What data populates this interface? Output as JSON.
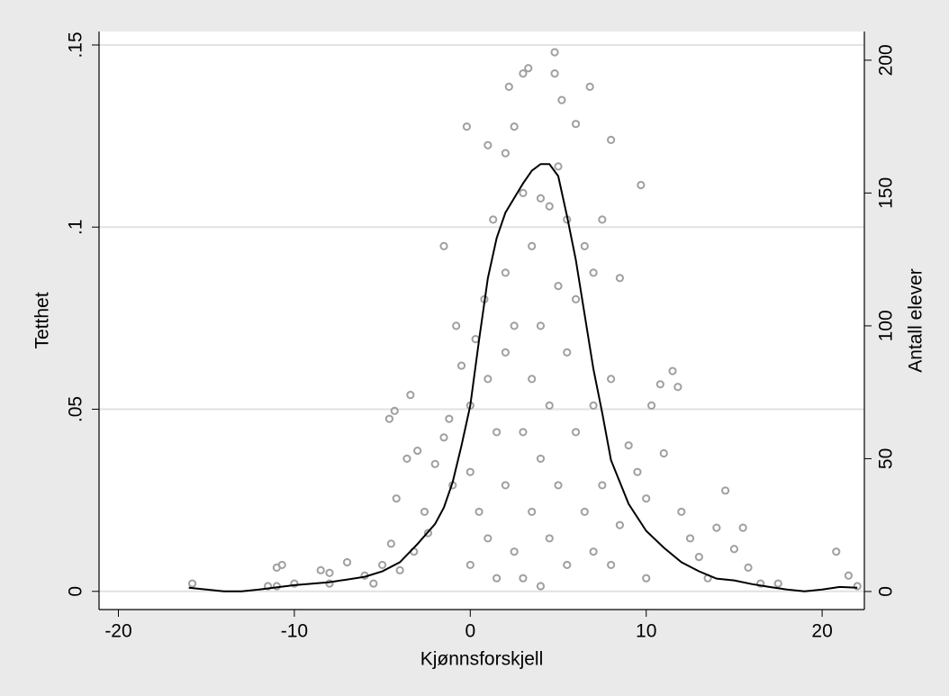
{
  "chart_data": {
    "type": "combo",
    "x_label": "Kjønnsforskjell",
    "y_label": "Tetthet",
    "y2_label": "Antall elever",
    "xlim": [
      -21.1,
      22.4
    ],
    "ylim": [
      -0.005,
      0.1537
    ],
    "y2lim": [
      -6.8,
      210.8
    ],
    "xticks": [
      -20,
      -10,
      0,
      10,
      20
    ],
    "yticks": [
      0,
      {
        "value": 0.05,
        "label": ".05"
      },
      {
        "value": 0.1,
        "label": ".1"
      },
      {
        "value": 0.15,
        "label": ".15"
      }
    ],
    "y2ticks": [
      0,
      50,
      100,
      150,
      200
    ],
    "grid": true,
    "series": [
      {
        "type": "line",
        "color": "#000000",
        "x": [
          -16,
          -14,
          -13,
          -12,
          -10,
          -8,
          -6,
          -5,
          -4,
          -3,
          -2,
          -1.5,
          -1,
          -0.5,
          0,
          0.5,
          1,
          1.5,
          2,
          2.5,
          3,
          3.5,
          4,
          4.5,
          5,
          5.5,
          6,
          6.5,
          7,
          7.5,
          8,
          9,
          10,
          11,
          12,
          13,
          14,
          15,
          16,
          17,
          18,
          19,
          20,
          21,
          22
        ],
        "values": [
          0.001,
          0,
          0,
          0.0005,
          0.0017,
          0.0025,
          0.004,
          0.0055,
          0.008,
          0.013,
          0.0185,
          0.023,
          0.03,
          0.04,
          0.051,
          0.069,
          0.086,
          0.097,
          0.104,
          0.108,
          0.112,
          0.1155,
          0.1173,
          0.1173,
          0.114,
          0.103,
          0.091,
          0.076,
          0.061,
          0.049,
          0.036,
          0.024,
          0.0166,
          0.012,
          0.008,
          0.0055,
          0.0035,
          0.003,
          0.002,
          0.0012,
          0.0005,
          0,
          0.0005,
          0.0012,
          0.001
        ]
      },
      {
        "type": "scatter",
        "color": "#a0a0a0",
        "axis": "y2",
        "x": [
          -15.8,
          -11.5,
          -11,
          -11,
          -10.7,
          -10,
          -8.5,
          -8,
          -8,
          -7,
          -6,
          -5.5,
          -5,
          -4.6,
          -4.3,
          -4.5,
          -4.2,
          -4,
          -3.6,
          -3.4,
          -3.2,
          -3,
          -2.6,
          -2.4,
          -2,
          -1.5,
          -1.5,
          -1.2,
          -1,
          -0.8,
          -0.5,
          -0.2,
          0,
          0,
          0,
          0.3,
          0.5,
          0.8,
          1,
          1,
          1,
          1.3,
          1.5,
          1.5,
          2,
          2,
          2,
          2,
          2.2,
          2.5,
          2.5,
          2.5,
          3,
          3,
          3,
          3,
          3.3,
          3.5,
          3.5,
          3.5,
          4,
          4,
          4,
          4,
          4.5,
          4.5,
          4.5,
          4.8,
          4.8,
          5,
          5,
          5,
          5.2,
          5.5,
          5.5,
          5.5,
          6,
          6,
          6,
          6.5,
          6.5,
          6.8,
          7,
          7,
          7,
          7.5,
          7.5,
          8,
          8,
          8,
          8.5,
          8.5,
          9,
          9.5,
          9.7,
          10,
          10,
          10.3,
          10.8,
          11,
          11.5,
          11.8,
          12,
          12.5,
          13,
          13.5,
          14,
          14.5,
          15,
          15.5,
          15.8,
          16.5,
          17.5,
          20.8,
          21.5,
          22
        ],
        "values": [
          3,
          2,
          2,
          9,
          10,
          3,
          8,
          7,
          3,
          11,
          6,
          3,
          10,
          65,
          68,
          18,
          35,
          8,
          50,
          74,
          15,
          53,
          30,
          22,
          48,
          130,
          58,
          65,
          40,
          100,
          85,
          175,
          70,
          45,
          10,
          95,
          30,
          110,
          168,
          80,
          20,
          140,
          60,
          5,
          165,
          120,
          90,
          40,
          190,
          175,
          100,
          15,
          195,
          150,
          60,
          5,
          197,
          130,
          80,
          30,
          148,
          100,
          50,
          2,
          145,
          70,
          20,
          203,
          195,
          160,
          115,
          40,
          185,
          140,
          90,
          10,
          176,
          110,
          60,
          130,
          30,
          190,
          120,
          70,
          15,
          140,
          40,
          170,
          80,
          10,
          118,
          25,
          55,
          45,
          153,
          35,
          5,
          70,
          78,
          52,
          83,
          77,
          30,
          20,
          13,
          5,
          24,
          38,
          16,
          24,
          9,
          3,
          3,
          15,
          6,
          2
        ]
      }
    ]
  }
}
